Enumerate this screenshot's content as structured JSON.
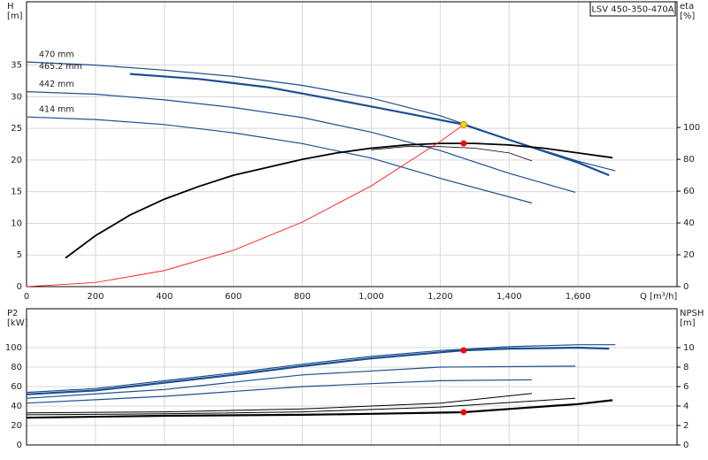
{
  "chart_data": [
    {
      "type": "line",
      "title": "LSV 450-350-470A",
      "x_label": "Q [m³/h]",
      "y_label": "H",
      "y_unit": "[m]",
      "y2_label": "eta",
      "y2_unit": "[%]",
      "xlim": [
        0,
        1887
      ],
      "ylim": [
        0,
        45
      ],
      "y2lim": [
        0,
        179
      ],
      "grid": true,
      "xticks": [
        0,
        200,
        400,
        600,
        800,
        {
          "value": 1000,
          "label": "1,000"
        },
        {
          "value": 1200,
          "label": "1,200"
        },
        {
          "value": 1400,
          "label": "1,400"
        },
        {
          "value": 1600,
          "label": "1,600"
        }
      ],
      "yticks": [
        0,
        5,
        10,
        15,
        20,
        25,
        30,
        35
      ],
      "y2ticks": [
        0,
        20,
        40,
        60,
        80,
        100
      ],
      "series": [
        {
          "name": "470 mm",
          "color": "#1d4f91",
          "linewidth": 1.2,
          "x": [
            0,
            200,
            400,
            600,
            800,
            1000,
            1200,
            1400,
            1600,
            1708
          ],
          "values": [
            35.5,
            35,
            34.2,
            33.2,
            31.8,
            29.8,
            27,
            23.2,
            19.8,
            18.3
          ]
        },
        {
          "name": "465.2 mm",
          "color": "#1d4f91",
          "linewidth": 2.2,
          "x": [
            300,
            500,
            700,
            900,
            1100,
            1268,
            1400,
            1600,
            1690
          ],
          "values": [
            33.6,
            32.8,
            31.5,
            29.5,
            27.4,
            25.6,
            23.2,
            19.6,
            17.6
          ]
        },
        {
          "name": "442 mm",
          "color": "#1d4f91",
          "linewidth": 1.2,
          "x": [
            0,
            200,
            400,
            600,
            800,
            1000,
            1200,
            1400,
            1592
          ],
          "values": [
            30.8,
            30.4,
            29.5,
            28.3,
            26.7,
            24.4,
            21.5,
            17.9,
            14.9
          ]
        },
        {
          "name": "414 mm",
          "color": "#1d4f91",
          "linewidth": 1.2,
          "x": [
            0,
            200,
            400,
            600,
            800,
            1000,
            1200,
            1466
          ],
          "values": [
            26.8,
            26.4,
            25.6,
            24.3,
            22.6,
            20.3,
            17.1,
            13.2
          ]
        },
        {
          "color": "#000000",
          "linewidth": 1.8,
          "axis": "y2",
          "x": [
            113,
            200,
            300,
            400,
            500,
            600,
            700,
            800,
            900,
            1000,
            1100,
            1200,
            1300,
            1400,
            1500,
            1600,
            1700
          ],
          "values": [
            18,
            32,
            45,
            55,
            63,
            70,
            75,
            80,
            84,
            87,
            89,
            90,
            90,
            89,
            87,
            84,
            81
          ]
        },
        {
          "color": "#000000",
          "linewidth": 0.8,
          "axis": "y2",
          "x": [
            1000,
            1100,
            1200,
            1300,
            1400,
            1466
          ],
          "values": [
            86,
            88,
            88,
            87,
            84,
            79
          ]
        },
        {
          "color": "#ff0000",
          "linewidth": 0.8,
          "x": [
            0,
            200,
            400,
            600,
            800,
            1000,
            1200,
            1268
          ],
          "values": [
            0,
            0.64,
            2.55,
            5.73,
            10.19,
            15.92,
            22.93,
            25.6
          ]
        }
      ],
      "points": [
        {
          "x": 1268,
          "y": 25.6,
          "color": "#ffd400"
        },
        {
          "x": 1268,
          "y": 90,
          "color": "#ff0000",
          "axis": "y2"
        }
      ]
    },
    {
      "type": "line",
      "y_label": "P2",
      "y_unit": "[kW]",
      "y2_label": "NPSH",
      "y2_unit": "[m]",
      "xlim": [
        0,
        1887
      ],
      "ylim": [
        0,
        140
      ],
      "y2lim": [
        0,
        14
      ],
      "grid": true,
      "yticks": [
        0,
        20,
        40,
        60,
        80,
        100
      ],
      "y2ticks": [
        0,
        2,
        4,
        6,
        8,
        10
      ],
      "series": [
        {
          "color": "#1d4f91",
          "linewidth": 1.2,
          "x": [
            0,
            200,
            400,
            600,
            800,
            1000,
            1200,
            1400,
            1600,
            1708
          ],
          "values": [
            54,
            58,
            66,
            74,
            83,
            91,
            97,
            101,
            103,
            103
          ]
        },
        {
          "color": "#1d4f91",
          "linewidth": 2.2,
          "x": [
            0,
            200,
            400,
            600,
            800,
            1000,
            1268,
            1400,
            1600,
            1690
          ],
          "values": [
            52,
            56,
            64,
            72,
            81,
            89,
            97.3,
            99,
            100,
            99
          ]
        },
        {
          "color": "#1d4f91",
          "linewidth": 1.2,
          "x": [
            0,
            400,
            800,
            1200,
            1592
          ],
          "values": [
            48,
            57,
            72,
            80,
            81
          ]
        },
        {
          "color": "#1d4f91",
          "linewidth": 1.2,
          "x": [
            0,
            400,
            800,
            1200,
            1466
          ],
          "values": [
            43,
            50,
            60,
            66,
            67
          ]
        },
        {
          "color": "#000000",
          "linewidth": 2.2,
          "axis": "y2",
          "x": [
            0,
            400,
            800,
            1000,
            1268,
            1400,
            1600,
            1700
          ],
          "values": [
            2.8,
            3.0,
            3.1,
            3.2,
            3.36,
            3.7,
            4.2,
            4.6
          ]
        },
        {
          "color": "#000000",
          "linewidth": 1,
          "axis": "y2",
          "x": [
            0,
            400,
            800,
            1200,
            1592
          ],
          "values": [
            3.1,
            3.2,
            3.4,
            3.9,
            4.8
          ]
        },
        {
          "color": "#000000",
          "linewidth": 1,
          "axis": "y2",
          "x": [
            0,
            400,
            800,
            1200,
            1466
          ],
          "values": [
            3.3,
            3.4,
            3.7,
            4.3,
            5.3
          ]
        }
      ],
      "points": [
        {
          "x": 1268,
          "y": 97.3,
          "color": "#ff0000"
        },
        {
          "x": 1268,
          "y": 3.36,
          "color": "#ff0000",
          "axis": "y2"
        }
      ]
    }
  ]
}
